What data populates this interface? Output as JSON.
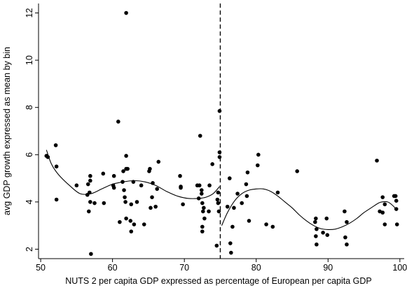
{
  "chart_data": {
    "type": "scatter",
    "title": "",
    "xlabel": "NUTS 2 per capita GDP expressed as percentage of European per capita GDP",
    "ylabel": "avg GDP growth expressed as mean by bin",
    "xlim": [
      49.7,
      100.6
    ],
    "ylim": [
      1.6,
      12.4
    ],
    "xticks": [
      50,
      60,
      70,
      80,
      90,
      100
    ],
    "yticks": [
      2,
      4,
      6,
      8,
      10,
      12
    ],
    "grid": false,
    "legend": "none",
    "cutoff_x": 75,
    "points": [
      [
        50.8,
        5.95
      ],
      [
        51.0,
        5.9
      ],
      [
        52.1,
        6.4
      ],
      [
        52.2,
        5.5
      ],
      [
        52.2,
        4.1
      ],
      [
        55.0,
        4.7
      ],
      [
        56.5,
        4.3
      ],
      [
        56.6,
        4.75
      ],
      [
        56.7,
        3.6
      ],
      [
        56.8,
        4.4
      ],
      [
        56.9,
        4.0
      ],
      [
        56.9,
        4.9
      ],
      [
        56.9,
        5.1
      ],
      [
        57.0,
        1.8
      ],
      [
        57.5,
        3.95
      ],
      [
        58.7,
        5.2
      ],
      [
        58.8,
        3.95
      ],
      [
        60.1,
        4.7
      ],
      [
        60.2,
        4.6
      ],
      [
        60.2,
        5.1
      ],
      [
        60.8,
        7.4
      ],
      [
        61.0,
        3.15
      ],
      [
        61.4,
        4.85
      ],
      [
        61.5,
        5.3
      ],
      [
        61.6,
        4.5
      ],
      [
        61.7,
        4.2
      ],
      [
        61.8,
        4.0
      ],
      [
        61.9,
        3.3
      ],
      [
        61.9,
        5.95
      ],
      [
        61.9,
        5.4
      ],
      [
        61.9,
        12.0
      ],
      [
        62.1,
        5.4
      ],
      [
        62.5,
        3.2
      ],
      [
        62.6,
        3.9
      ],
      [
        62.6,
        2.75
      ],
      [
        62.9,
        4.85
      ],
      [
        63.0,
        3.05
      ],
      [
        63.4,
        4.0
      ],
      [
        64.0,
        4.7
      ],
      [
        64.4,
        3.05
      ],
      [
        65.1,
        5.3
      ],
      [
        65.2,
        5.4
      ],
      [
        65.3,
        3.75
      ],
      [
        65.5,
        4.2
      ],
      [
        65.6,
        4.8
      ],
      [
        66.0,
        3.8
      ],
      [
        66.2,
        4.55
      ],
      [
        66.4,
        5.7
      ],
      [
        69.4,
        5.1
      ],
      [
        69.5,
        4.65
      ],
      [
        69.5,
        4.6
      ],
      [
        69.8,
        3.9
      ],
      [
        71.8,
        4.7
      ],
      [
        72.0,
        4.15
      ],
      [
        72.1,
        4.7
      ],
      [
        72.2,
        6.8
      ],
      [
        72.4,
        4.35
      ],
      [
        72.4,
        4.5
      ],
      [
        72.5,
        2.95
      ],
      [
        72.5,
        2.75
      ],
      [
        72.5,
        3.95
      ],
      [
        72.6,
        3.6
      ],
      [
        72.7,
        3.75
      ],
      [
        72.8,
        3.3
      ],
      [
        73.4,
        3.6
      ],
      [
        73.5,
        4.7
      ],
      [
        73.9,
        5.6
      ],
      [
        74.5,
        2.15
      ],
      [
        74.6,
        4.1
      ],
      [
        74.7,
        4.4
      ],
      [
        74.7,
        3.95
      ],
      [
        74.8,
        3.6
      ],
      [
        74.9,
        5.9
      ],
      [
        74.9,
        6.1
      ],
      [
        74.9,
        7.85
      ],
      [
        76.0,
        3.8
      ],
      [
        76.3,
        5.0
      ],
      [
        76.4,
        2.25
      ],
      [
        76.5,
        1.85
      ],
      [
        76.7,
        2.95
      ],
      [
        76.9,
        3.75
      ],
      [
        77.4,
        4.35
      ],
      [
        78.0,
        3.95
      ],
      [
        78.6,
        4.75
      ],
      [
        78.7,
        4.25
      ],
      [
        78.8,
        5.25
      ],
      [
        79.0,
        3.2
      ],
      [
        80.2,
        5.55
      ],
      [
        80.3,
        6.0
      ],
      [
        81.4,
        3.05
      ],
      [
        82.3,
        2.95
      ],
      [
        83.0,
        4.4
      ],
      [
        85.7,
        5.3
      ],
      [
        88.2,
        3.15
      ],
      [
        88.3,
        3.3
      ],
      [
        88.3,
        2.55
      ],
      [
        88.4,
        2.85
      ],
      [
        88.4,
        2.2
      ],
      [
        89.3,
        2.7
      ],
      [
        89.8,
        3.3
      ],
      [
        89.9,
        2.6
      ],
      [
        92.3,
        3.6
      ],
      [
        92.4,
        2.5
      ],
      [
        92.6,
        3.15
      ],
      [
        92.6,
        2.2
      ],
      [
        96.8,
        5.75
      ],
      [
        97.2,
        3.6
      ],
      [
        97.6,
        3.55
      ],
      [
        97.6,
        4.2
      ],
      [
        97.9,
        3.05
      ],
      [
        97.9,
        3.9
      ],
      [
        99.2,
        4.25
      ],
      [
        99.4,
        4.25
      ],
      [
        99.5,
        3.7
      ],
      [
        99.5,
        4.05
      ],
      [
        99.6,
        3.05
      ]
    ],
    "fit_left": [
      [
        50.8,
        6.2
      ],
      [
        51.5,
        5.6
      ],
      [
        52.5,
        5.15
      ],
      [
        54.0,
        4.7
      ],
      [
        55.5,
        4.35
      ],
      [
        57.0,
        4.35
      ],
      [
        58.5,
        4.55
      ],
      [
        60.0,
        4.75
      ],
      [
        61.5,
        4.85
      ],
      [
        63.0,
        4.9
      ],
      [
        64.5,
        4.85
      ],
      [
        66.0,
        4.7
      ],
      [
        67.5,
        4.45
      ],
      [
        69.0,
        4.25
      ],
      [
        70.5,
        4.15
      ],
      [
        72.0,
        4.15
      ],
      [
        73.0,
        4.2
      ],
      [
        74.0,
        4.35
      ],
      [
        74.9,
        4.65
      ]
    ],
    "fit_right": [
      [
        75.2,
        3.0
      ],
      [
        76.0,
        3.55
      ],
      [
        77.0,
        4.05
      ],
      [
        78.0,
        4.35
      ],
      [
        79.0,
        4.5
      ],
      [
        80.0,
        4.55
      ],
      [
        81.0,
        4.55
      ],
      [
        82.0,
        4.45
      ],
      [
        83.0,
        4.25
      ],
      [
        84.0,
        4.0
      ],
      [
        85.0,
        3.75
      ],
      [
        86.0,
        3.45
      ],
      [
        87.0,
        3.2
      ],
      [
        88.0,
        3.0
      ],
      [
        89.0,
        2.87
      ],
      [
        90.0,
        2.83
      ],
      [
        91.0,
        2.85
      ],
      [
        92.0,
        2.95
      ],
      [
        93.0,
        3.1
      ],
      [
        94.0,
        3.3
      ],
      [
        95.0,
        3.55
      ],
      [
        96.0,
        3.75
      ],
      [
        97.0,
        3.95
      ],
      [
        97.5,
        4.0
      ],
      [
        98.3,
        4.0
      ],
      [
        99.0,
        3.85
      ],
      [
        99.6,
        3.65
      ]
    ]
  }
}
